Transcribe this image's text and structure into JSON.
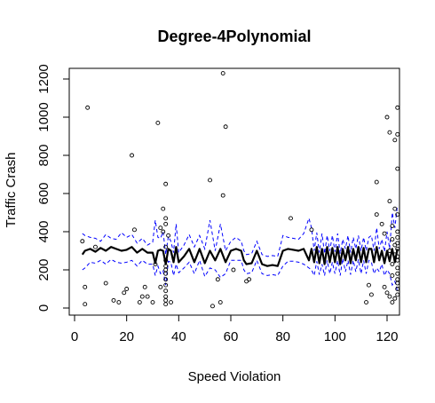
{
  "chart_data": {
    "type": "scatter",
    "title": "Degree-4Polynomial",
    "xlabel": "Speed Violation",
    "ylabel": "Traffic Crash",
    "xlim": [
      0,
      126
    ],
    "ylim": [
      -10,
      1290
    ],
    "x_ticks": [
      0,
      20,
      40,
      60,
      80,
      100,
      120
    ],
    "y_ticks": [
      0,
      200,
      400,
      600,
      800,
      1000,
      1200
    ],
    "grid": false,
    "legend": "none",
    "colors": {
      "points": "#000000",
      "fit": "#000000",
      "band": "#0000ff"
    },
    "points": [
      [
        3,
        350
      ],
      [
        4,
        110
      ],
      [
        4,
        20
      ],
      [
        5,
        1050
      ],
      [
        8,
        320
      ],
      [
        12,
        130
      ],
      [
        15,
        40
      ],
      [
        17,
        30
      ],
      [
        19,
        80
      ],
      [
        20,
        100
      ],
      [
        22,
        800
      ],
      [
        23,
        410
      ],
      [
        25,
        30
      ],
      [
        26,
        60
      ],
      [
        27,
        110
      ],
      [
        28,
        60
      ],
      [
        30,
        30
      ],
      [
        31,
        230
      ],
      [
        32,
        970
      ],
      [
        33,
        110
      ],
      [
        33,
        420
      ],
      [
        34,
        520
      ],
      [
        34,
        400
      ],
      [
        35,
        650
      ],
      [
        35,
        470
      ],
      [
        35,
        440
      ],
      [
        35,
        320
      ],
      [
        35,
        250
      ],
      [
        35,
        220
      ],
      [
        35,
        200
      ],
      [
        35,
        180
      ],
      [
        35,
        150
      ],
      [
        35,
        120
      ],
      [
        35,
        90
      ],
      [
        35,
        60
      ],
      [
        35,
        40
      ],
      [
        35,
        20
      ],
      [
        36,
        380
      ],
      [
        37,
        30
      ],
      [
        52,
        670
      ],
      [
        53,
        10
      ],
      [
        55,
        150
      ],
      [
        56,
        30
      ],
      [
        57,
        1230
      ],
      [
        57,
        590
      ],
      [
        58,
        950
      ],
      [
        61,
        200
      ],
      [
        66,
        140
      ],
      [
        67,
        150
      ],
      [
        83,
        470
      ],
      [
        91,
        410
      ],
      [
        112,
        30
      ],
      [
        113,
        120
      ],
      [
        114,
        70
      ],
      [
        116,
        660
      ],
      [
        116,
        490
      ],
      [
        118,
        440
      ],
      [
        119,
        390
      ],
      [
        119,
        110
      ],
      [
        120,
        1000
      ],
      [
        120,
        80
      ],
      [
        121,
        920
      ],
      [
        121,
        560
      ],
      [
        121,
        300
      ],
      [
        121,
        60
      ],
      [
        122,
        430
      ],
      [
        122,
        360
      ],
      [
        122,
        230
      ],
      [
        122,
        170
      ],
      [
        122,
        30
      ],
      [
        123,
        880
      ],
      [
        123,
        520
      ],
      [
        123,
        330
      ],
      [
        123,
        280
      ],
      [
        123,
        50
      ],
      [
        124,
        1050
      ],
      [
        124,
        910
      ],
      [
        124,
        730
      ],
      [
        124,
        490
      ],
      [
        124,
        400
      ],
      [
        124,
        370
      ],
      [
        124,
        340
      ],
      [
        124,
        310
      ],
      [
        124,
        270
      ],
      [
        124,
        250
      ],
      [
        124,
        210
      ],
      [
        124,
        180
      ],
      [
        124,
        150
      ],
      [
        124,
        130
      ],
      [
        124,
        100
      ],
      [
        124,
        70
      ]
    ],
    "fit": {
      "x": [
        3,
        4,
        6,
        8,
        10,
        12,
        14,
        16,
        18,
        20,
        22,
        24,
        26,
        28,
        30,
        31,
        32,
        33,
        34,
        35,
        36,
        37,
        38,
        39,
        40,
        42,
        44,
        46,
        48,
        50,
        52,
        54,
        56,
        58,
        60,
        62,
        64,
        65,
        66,
        68,
        70,
        72,
        74,
        76,
        78,
        80,
        82,
        84,
        86,
        88,
        90,
        91,
        92,
        93,
        94,
        95,
        96,
        97,
        98,
        99,
        100,
        101,
        102,
        103,
        104,
        105,
        106,
        107,
        108,
        109,
        110,
        111,
        112,
        113,
        114,
        115,
        116,
        117,
        118,
        119,
        120,
        121,
        122,
        123,
        124
      ],
      "y": [
        280,
        300,
        310,
        295,
        315,
        300,
        320,
        310,
        300,
        305,
        320,
        290,
        310,
        290,
        290,
        235,
        300,
        305,
        300,
        230,
        310,
        300,
        240,
        320,
        240,
        270,
        310,
        240,
        310,
        235,
        300,
        250,
        310,
        240,
        300,
        310,
        300,
        250,
        230,
        235,
        300,
        230,
        220,
        225,
        220,
        300,
        310,
        305,
        300,
        310,
        250,
        310,
        240,
        320,
        235,
        310,
        230,
        320,
        240,
        315,
        240,
        320,
        230,
        310,
        250,
        320,
        235,
        310,
        250,
        320,
        240,
        315,
        240,
        310,
        310,
        240,
        320,
        250,
        300,
        235,
        300,
        245,
        310,
        240,
        310
      ],
      "upper": [
        390,
        380,
        370,
        365,
        350,
        385,
        365,
        360,
        395,
        370,
        385,
        340,
        365,
        330,
        345,
        460,
        370,
        365,
        400,
        280,
        375,
        350,
        290,
        440,
        290,
        330,
        385,
        320,
        380,
        310,
        460,
        300,
        440,
        300,
        350,
        370,
        350,
        300,
        280,
        285,
        350,
        280,
        270,
        275,
        270,
        380,
        370,
        365,
        360,
        390,
        470,
        420,
        300,
        395,
        290,
        390,
        285,
        380,
        300,
        380,
        295,
        390,
        285,
        360,
        310,
        380,
        290,
        370,
        310,
        380,
        300,
        370,
        300,
        370,
        380,
        300,
        420,
        310,
        360,
        295,
        400,
        310,
        500,
        420,
        540
      ],
      "lower": [
        200,
        210,
        240,
        235,
        250,
        230,
        255,
        240,
        235,
        240,
        250,
        220,
        250,
        230,
        230,
        170,
        220,
        180,
        195,
        120,
        245,
        240,
        170,
        230,
        185,
        210,
        240,
        180,
        250,
        165,
        210,
        200,
        160,
        180,
        250,
        250,
        250,
        200,
        180,
        185,
        250,
        180,
        170,
        175,
        170,
        220,
        245,
        245,
        240,
        230,
        210,
        200,
        170,
        245,
        175,
        230,
        170,
        250,
        180,
        240,
        180,
        250,
        170,
        260,
        190,
        250,
        175,
        250,
        190,
        255,
        180,
        250,
        180,
        250,
        240,
        180,
        210,
        190,
        230,
        170,
        200,
        180,
        120,
        140,
        90
      ]
    }
  }
}
